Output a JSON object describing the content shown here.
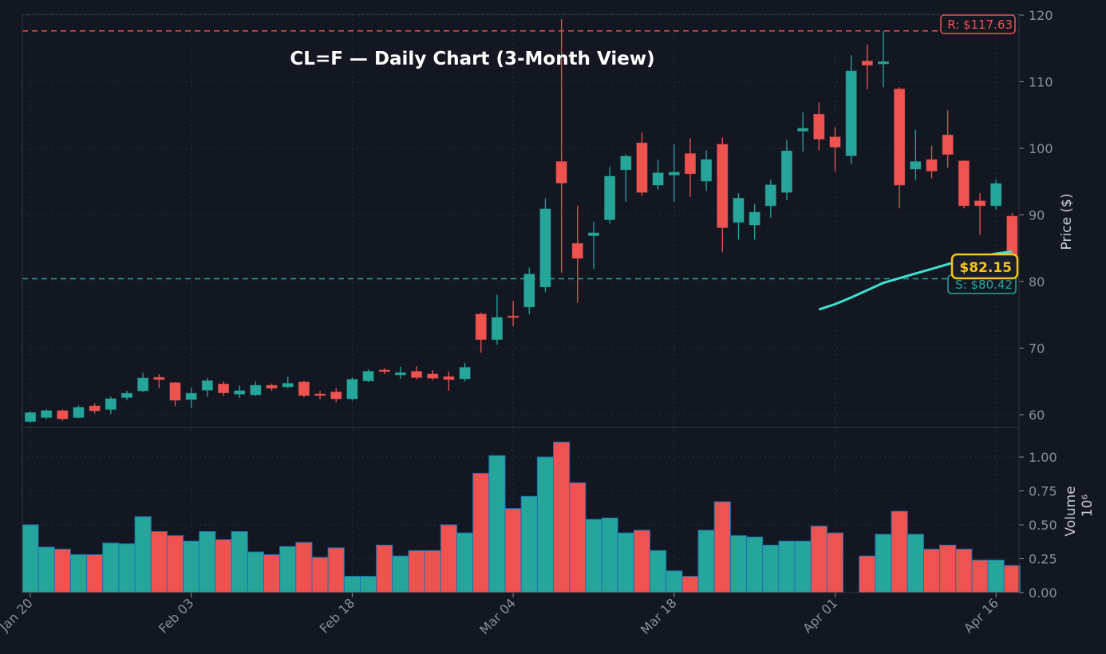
{
  "chart_data": {
    "type": "candlestick",
    "title": "CL=F — Daily Chart (3-Month View)",
    "ylabel": "Price ($)",
    "volume_label": "Volume",
    "volume_multiplier": "10⁶",
    "ylim": [
      58,
      120.2
    ],
    "volume_ylim": [
      0,
      1.2
    ],
    "price_ticks": [
      "60",
      "70",
      "80",
      "90",
      "100",
      "110",
      "120"
    ],
    "volume_ticks": [
      "0.00",
      "0.25",
      "0.50",
      "0.75",
      "1.00"
    ],
    "x_ticks": [
      {
        "index": 0,
        "label": "Jan 20"
      },
      {
        "index": 10,
        "label": "Feb 03"
      },
      {
        "index": 20,
        "label": "Feb 18"
      },
      {
        "index": 30,
        "label": "Mar 04"
      },
      {
        "index": 40,
        "label": "Mar 18"
      },
      {
        "index": 50,
        "label": "Apr 01"
      },
      {
        "index": 60,
        "label": "Apr 16"
      }
    ],
    "grid": true,
    "colors": {
      "up": "#26a69a",
      "down": "#ef5350",
      "ma": "#40e0d0",
      "current": "#f5c518",
      "background": "#131722"
    },
    "ohlc": [
      [
        59.0,
        60.5,
        58.8,
        60.3
      ],
      [
        59.6,
        60.8,
        59.3,
        60.6
      ],
      [
        60.6,
        60.8,
        59.1,
        59.4
      ],
      [
        59.6,
        61.4,
        59.5,
        61.1
      ],
      [
        61.3,
        61.7,
        60.2,
        60.6
      ],
      [
        60.8,
        62.7,
        60.1,
        62.4
      ],
      [
        62.6,
        63.6,
        62.2,
        63.2
      ],
      [
        63.6,
        66.3,
        63.4,
        65.5
      ],
      [
        65.6,
        66.1,
        64.0,
        65.3
      ],
      [
        64.8,
        64.9,
        61.3,
        62.2
      ],
      [
        62.3,
        64.1,
        61.0,
        63.2
      ],
      [
        63.7,
        65.5,
        62.7,
        65.1
      ],
      [
        64.6,
        65.0,
        62.8,
        63.3
      ],
      [
        63.1,
        64.4,
        62.5,
        63.6
      ],
      [
        63.0,
        65.0,
        62.8,
        64.4
      ],
      [
        64.4,
        64.7,
        63.6,
        64.0
      ],
      [
        64.2,
        65.7,
        64.0,
        64.7
      ],
      [
        64.9,
        65.1,
        62.6,
        62.9
      ],
      [
        63.1,
        63.6,
        62.3,
        62.9
      ],
      [
        63.4,
        64.0,
        61.9,
        62.4
      ],
      [
        62.4,
        65.6,
        62.1,
        65.3
      ],
      [
        65.1,
        66.8,
        64.9,
        66.5
      ],
      [
        66.7,
        67.0,
        66.1,
        66.5
      ],
      [
        66.0,
        67.2,
        65.4,
        66.3
      ],
      [
        66.5,
        67.3,
        65.3,
        65.6
      ],
      [
        66.1,
        66.7,
        65.2,
        65.5
      ],
      [
        65.7,
        66.5,
        63.6,
        65.3
      ],
      [
        65.4,
        67.8,
        65.0,
        67.1
      ],
      [
        75.1,
        75.3,
        69.3,
        71.3
      ],
      [
        71.3,
        78.0,
        70.5,
        74.6
      ],
      [
        74.8,
        77.1,
        73.3,
        74.7
      ],
      [
        76.2,
        82.1,
        75.1,
        81.1
      ],
      [
        79.2,
        92.5,
        78.4,
        90.9
      ],
      [
        98.0,
        119.4,
        81.3,
        94.8
      ],
      [
        85.7,
        91.4,
        76.8,
        83.5
      ],
      [
        86.9,
        89.0,
        81.9,
        87.3
      ],
      [
        89.3,
        97.2,
        88.7,
        95.8
      ],
      [
        96.8,
        99.1,
        92.0,
        98.8
      ],
      [
        100.8,
        102.4,
        92.9,
        93.4
      ],
      [
        94.5,
        98.3,
        93.8,
        96.3
      ],
      [
        96.0,
        100.6,
        92.0,
        96.4
      ],
      [
        99.2,
        101.5,
        92.7,
        96.2
      ],
      [
        95.1,
        99.7,
        93.6,
        98.3
      ],
      [
        100.6,
        101.6,
        84.4,
        88.1
      ],
      [
        88.9,
        93.3,
        86.3,
        92.5
      ],
      [
        88.5,
        91.6,
        86.3,
        90.4
      ],
      [
        91.4,
        95.3,
        89.6,
        94.5
      ],
      [
        93.4,
        101.3,
        92.2,
        99.6
      ],
      [
        102.6,
        105.4,
        99.5,
        103.0
      ],
      [
        105.1,
        106.9,
        99.7,
        101.4
      ],
      [
        101.7,
        103.2,
        96.5,
        100.2
      ],
      [
        98.9,
        114.0,
        97.6,
        111.6
      ],
      [
        113.1,
        115.6,
        108.9,
        112.5
      ],
      [
        112.7,
        117.6,
        109.2,
        113.0
      ],
      [
        108.9,
        109.2,
        91.0,
        94.5
      ],
      [
        96.9,
        102.8,
        95.2,
        98.0
      ],
      [
        98.3,
        100.4,
        95.5,
        96.6
      ],
      [
        102.0,
        105.7,
        97.1,
        99.1
      ],
      [
        98.1,
        98.2,
        91.0,
        91.4
      ],
      [
        92.1,
        93.3,
        87.0,
        91.4
      ],
      [
        91.4,
        95.3,
        90.8,
        94.7
      ],
      [
        89.8,
        90.3,
        82.0,
        82.15
      ]
    ],
    "volume": [
      0.5,
      0.335,
      0.32,
      0.28,
      0.28,
      0.365,
      0.36,
      0.56,
      0.45,
      0.42,
      0.38,
      0.45,
      0.39,
      0.45,
      0.3,
      0.28,
      0.34,
      0.37,
      0.26,
      0.33,
      0.12,
      0.12,
      0.35,
      0.27,
      0.31,
      0.31,
      0.5,
      0.44,
      0.88,
      1.01,
      0.62,
      0.71,
      1.0,
      1.11,
      0.81,
      0.54,
      0.55,
      0.44,
      0.46,
      0.31,
      0.16,
      0.12,
      0.46,
      0.67,
      0.42,
      0.41,
      0.35,
      0.38,
      0.38,
      0.49,
      0.44,
      0.0,
      0.27,
      0.43,
      0.6,
      0.43,
      0.32,
      0.35,
      0.32,
      0.24,
      0.24,
      0.2
    ],
    "moving_average": {
      "start_index": 49,
      "values": [
        75.8,
        76.6,
        77.6,
        78.7,
        79.8,
        80.5,
        81.2,
        81.9,
        82.6,
        83.3,
        83.7,
        84.2,
        84.5
      ]
    },
    "resistance": {
      "value": 117.63,
      "label": "R: $117.63"
    },
    "support": {
      "value": 80.42,
      "label": "S: $80.42"
    },
    "current_price": {
      "value": 82.15,
      "label": "$82.15"
    }
  }
}
